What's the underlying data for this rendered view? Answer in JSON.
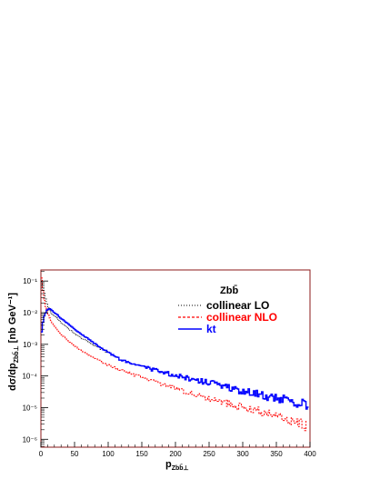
{
  "chart_data": {
    "type": "line",
    "title": "",
    "xlabel_main": "p",
    "xlabel_sub": "Zbb̄⊥",
    "ylabel_main": "dσ/dp",
    "ylabel_sub": "Zbb̄⊥",
    "ylabel_unit": "[nb GeV⁻¹]",
    "xlim": [
      0,
      400
    ],
    "ylim_log10": [
      -6.25,
      -0.65
    ],
    "log_y": true,
    "grid": false,
    "legend_position": "top-right",
    "legend_header": "Zbb̄",
    "x_ticks": [
      0,
      50,
      100,
      150,
      200,
      250,
      300,
      350,
      400
    ],
    "x_tick_labels": [
      "0",
      "50",
      "100",
      "150",
      "200",
      "250",
      "300",
      "350",
      "400"
    ],
    "y_ticks_log10": [
      -6,
      -5,
      -4,
      -3,
      -2,
      -1
    ],
    "y_tick_labels": [
      "10⁻⁶",
      "10⁻⁵",
      "10⁻⁴",
      "10⁻³",
      "10⁻²",
      "10⁻¹"
    ],
    "series": [
      {
        "name": "collinear LO",
        "color": "#000000",
        "style": "dotted",
        "x": [
          1,
          3,
          5,
          8,
          10,
          12,
          15,
          20,
          25,
          30,
          35,
          40,
          50,
          60,
          70,
          80,
          90,
          100
        ],
        "y_log10": [
          -1.0,
          -1.2,
          -1.4,
          -1.65,
          -1.8,
          -1.9,
          -2.0,
          -2.1,
          -2.2,
          -2.3,
          -2.4,
          -2.5,
          -2.65,
          -2.8,
          -2.92,
          -3.05,
          -3.15,
          -3.25
        ]
      },
      {
        "name": "collinear NLO",
        "color": "#ff0000",
        "style": "dashed",
        "x": [
          1,
          2,
          3,
          5,
          7,
          10,
          12,
          15,
          20,
          25,
          30,
          40,
          50,
          60,
          80,
          100,
          120,
          150,
          175,
          200,
          225,
          250,
          275,
          300,
          325,
          350,
          375,
          395
        ],
        "y_log10": [
          -0.9,
          -1.1,
          -1.3,
          -1.6,
          -1.8,
          -2.0,
          -2.12,
          -2.25,
          -2.42,
          -2.55,
          -2.68,
          -2.88,
          -3.05,
          -3.2,
          -3.45,
          -3.65,
          -3.82,
          -4.05,
          -4.22,
          -4.4,
          -4.55,
          -4.7,
          -4.85,
          -5.0,
          -5.12,
          -5.28,
          -5.42,
          -5.58
        ]
      },
      {
        "name": "kt",
        "color": "#0000ff",
        "style": "solid",
        "x": [
          1,
          3,
          5,
          8,
          10,
          12,
          15,
          18,
          20,
          25,
          30,
          40,
          50,
          60,
          70,
          80,
          90,
          100,
          110,
          120,
          150,
          175,
          200,
          225,
          250,
          275,
          300,
          325,
          350,
          375,
          398
        ],
        "y_log10": [
          -2.6,
          -2.3,
          -2.1,
          -1.95,
          -1.9,
          -1.88,
          -1.9,
          -1.95,
          -2.0,
          -2.08,
          -2.18,
          -2.35,
          -2.52,
          -2.68,
          -2.82,
          -2.97,
          -3.12,
          -3.25,
          -3.38,
          -3.5,
          -3.7,
          -3.85,
          -3.98,
          -4.1,
          -4.22,
          -4.35,
          -4.48,
          -4.58,
          -4.7,
          -4.82,
          -4.92
        ]
      }
    ]
  }
}
